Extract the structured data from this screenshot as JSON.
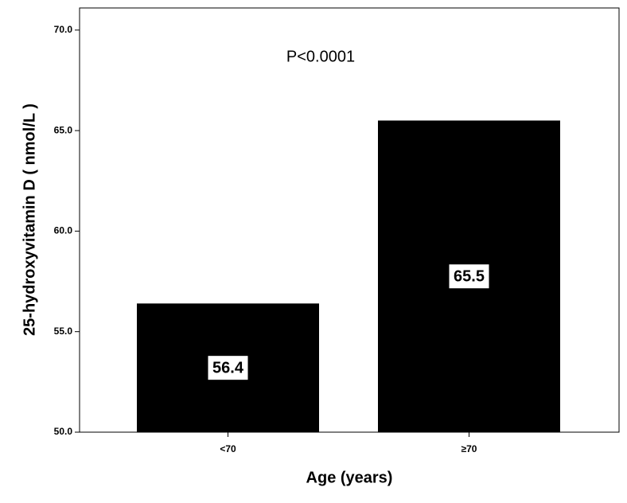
{
  "chart_data": {
    "type": "bar",
    "categories": [
      "<70",
      "≥70"
    ],
    "values": [
      56.4,
      65.5
    ],
    "color": "#000000",
    "x_label": "Age (years)",
    "y_label": "25-hydroxyvitamin D ( nmol/L )",
    "annotation": "P<0.0001",
    "ylim": [
      50,
      71.1
    ],
    "yticks": [
      {
        "value": 50,
        "label": "50.0"
      },
      {
        "value": 55,
        "label": "55.0"
      },
      {
        "value": 60,
        "label": "60.0"
      },
      {
        "value": 65,
        "label": "65.0"
      },
      {
        "value": 70,
        "label": "70.0"
      }
    ]
  }
}
